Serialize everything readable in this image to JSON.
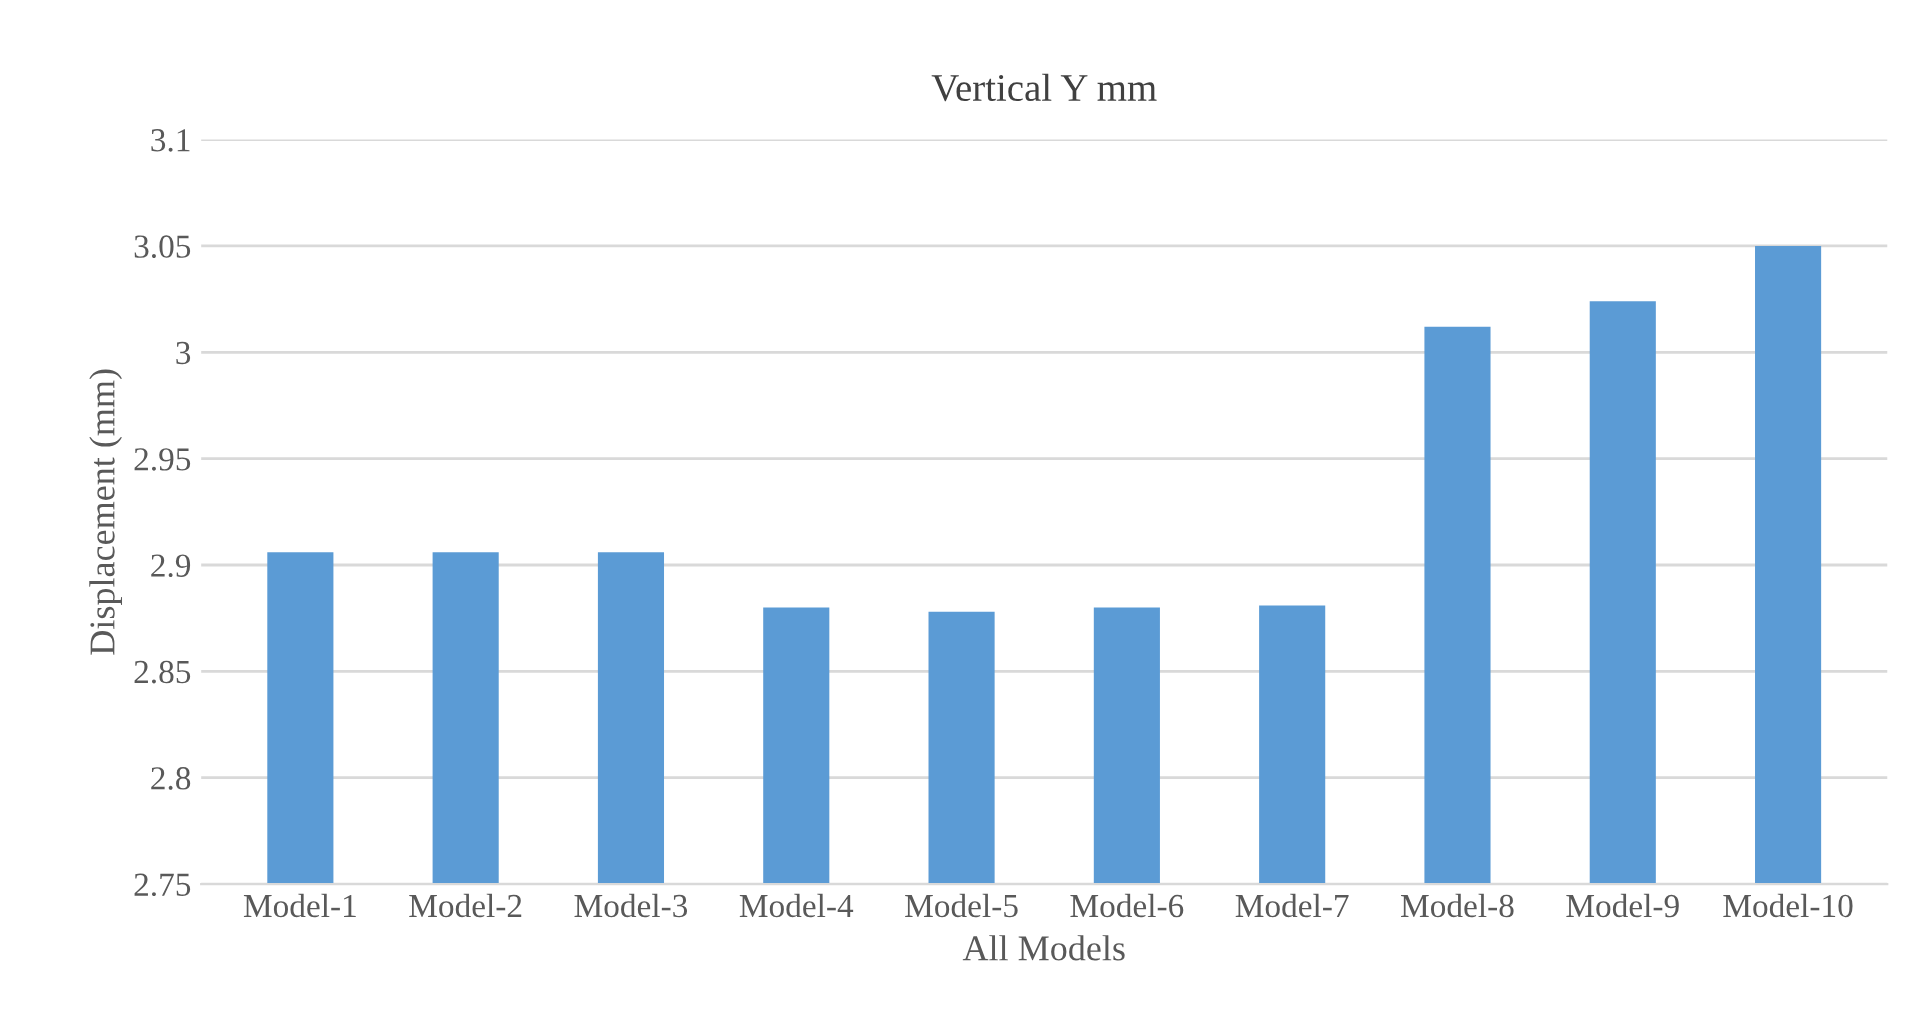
{
  "chart_data": {
    "type": "bar",
    "title": "Vertical Y mm",
    "xlabel": "All Models",
    "ylabel": "Displacement (mm)",
    "categories": [
      "Model-1",
      "Model-2",
      "Model-3",
      "Model-4",
      "Model-5",
      "Model-6",
      "Model-7",
      "Model-8",
      "Model-9",
      "Model-10"
    ],
    "values": [
      2.906,
      2.906,
      2.906,
      2.88,
      2.878,
      2.88,
      2.881,
      3.012,
      3.024,
      3.05
    ],
    "color": "#5b9bd5",
    "ylim": [
      2.75,
      3.1
    ],
    "yticks": [
      2.75,
      2.8,
      2.85,
      2.9,
      2.95,
      3,
      3.05,
      3.1
    ],
    "grid": "y",
    "legend": false
  }
}
